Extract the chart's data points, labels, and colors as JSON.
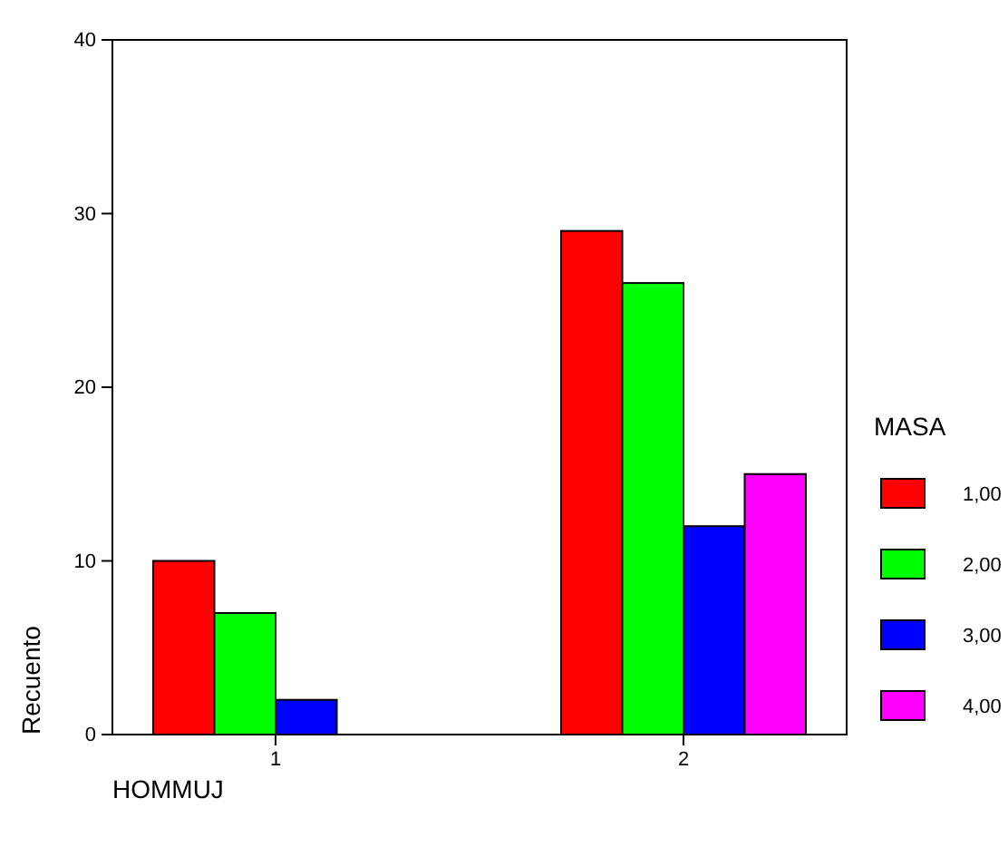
{
  "chart_data": {
    "type": "bar",
    "xlabel": "HOMMUJ",
    "ylabel": "Recuento",
    "legend_title": "MASA",
    "categories": [
      "1",
      "2"
    ],
    "series": [
      {
        "name": "1,00",
        "color": "#ff0000",
        "values": [
          10,
          29
        ]
      },
      {
        "name": "2,00",
        "color": "#00ff00",
        "values": [
          7,
          26
        ]
      },
      {
        "name": "3,00",
        "color": "#0000ff",
        "values": [
          2,
          12
        ]
      },
      {
        "name": "4,00",
        "color": "#ff00ff",
        "values": [
          null,
          15
        ]
      }
    ],
    "ylim": [
      0,
      40
    ],
    "yticks": [
      0,
      10,
      20,
      30,
      40
    ],
    "legend": "right",
    "grid": false
  }
}
